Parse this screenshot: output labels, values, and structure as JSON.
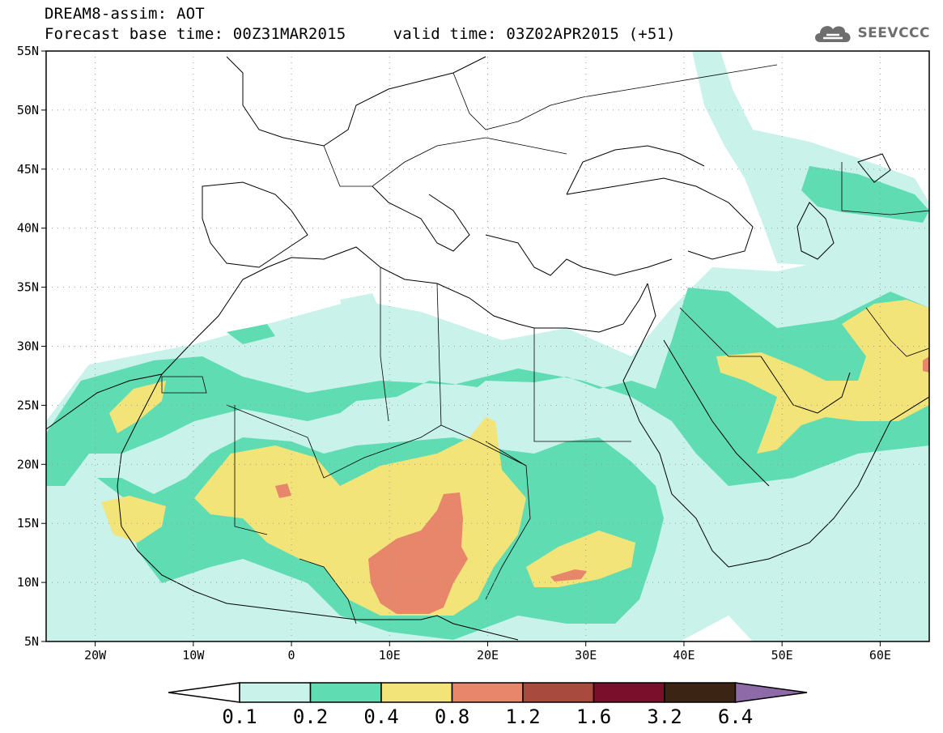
{
  "header": {
    "title": "DREAM8-assim: AOT",
    "base_time_label": "Forecast base time: 00Z31MAR2015",
    "valid_time_label": "valid time: 03Z02APR2015 (+51)"
  },
  "logo": {
    "text": "SEEVCCC",
    "icon": "cloud-icon"
  },
  "map": {
    "extent_lon": [
      -25,
      65
    ],
    "extent_lat": [
      5,
      55
    ],
    "lat_ticks": [
      {
        "value": 5,
        "label": "5N"
      },
      {
        "value": 10,
        "label": "10N"
      },
      {
        "value": 15,
        "label": "15N"
      },
      {
        "value": 20,
        "label": "20N"
      },
      {
        "value": 25,
        "label": "25N"
      },
      {
        "value": 30,
        "label": "30N"
      },
      {
        "value": 35,
        "label": "35N"
      },
      {
        "value": 40,
        "label": "40N"
      },
      {
        "value": 45,
        "label": "45N"
      },
      {
        "value": 50,
        "label": "50N"
      },
      {
        "value": 55,
        "label": "55N"
      }
    ],
    "lon_ticks": [
      {
        "value": -20,
        "label": "20W"
      },
      {
        "value": -10,
        "label": "10W"
      },
      {
        "value": 0,
        "label": "0"
      },
      {
        "value": 10,
        "label": "10E"
      },
      {
        "value": 20,
        "label": "20E"
      },
      {
        "value": 30,
        "label": "30E"
      },
      {
        "value": 40,
        "label": "40E"
      },
      {
        "value": 50,
        "label": "50E"
      },
      {
        "value": 60,
        "label": "60E"
      }
    ],
    "gridlines": "dotted",
    "colors": {
      "aot_0_1": "#c8f2ea",
      "aot_0_2": "#5fdcb2",
      "aot_0_4": "#f3e47a",
      "aot_0_8": "#e7866a",
      "aot_1_2": "#a84a3e",
      "aot_1_6": "#7a0f2b",
      "aot_3_2": "#3b2414",
      "aot_6_4": "#8e6ba8"
    }
  },
  "colorbar": {
    "levels": [
      "0.1",
      "0.2",
      "0.4",
      "0.8",
      "1.2",
      "1.6",
      "3.2",
      "6.4"
    ],
    "colors": [
      "#c8f2ea",
      "#5fdcb2",
      "#f3e47a",
      "#e7866a",
      "#a84a3e",
      "#7a0f2b",
      "#3b2414"
    ],
    "lower_extend_color": "#ffffff",
    "upper_extend_color": "#8e6ba8"
  }
}
